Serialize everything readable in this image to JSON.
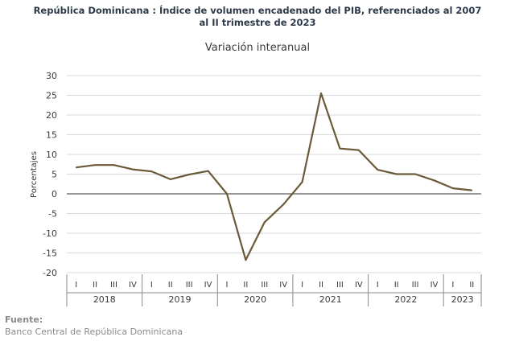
{
  "chart_data": {
    "type": "line",
    "title": "República Dominicana : Índice de volumen encadenado del PIB, referenciados al 2007 al II trimestre de 2023",
    "title_lines": [
      "República Dominicana : Índice de volumen encadenado del PIB, referenciados al 2007",
      "al II trimestre de 2023"
    ],
    "subtitle": "Variación interanual",
    "ylabel": "Porcentajes",
    "xlabel": "",
    "ylim": [
      -20,
      30
    ],
    "yticks": [
      30,
      25,
      20,
      15,
      10,
      5,
      0,
      -5,
      -10,
      -15,
      -20
    ],
    "grid": true,
    "legend": "none",
    "line_color": "#6b5a3a",
    "years": [
      {
        "label": "2018",
        "quarters": [
          "I",
          "II",
          "III",
          "IV"
        ]
      },
      {
        "label": "2019",
        "quarters": [
          "I",
          "II",
          "III",
          "IV"
        ]
      },
      {
        "label": "2020",
        "quarters": [
          "I",
          "II",
          "III",
          "IV"
        ]
      },
      {
        "label": "2021",
        "quarters": [
          "I",
          "II",
          "III",
          "IV"
        ]
      },
      {
        "label": "2022",
        "quarters": [
          "I",
          "II",
          "III",
          "IV"
        ]
      },
      {
        "label": "2023",
        "quarters": [
          "I",
          "II"
        ]
      }
    ],
    "values": [
      6.7,
      7.3,
      7.3,
      6.2,
      5.7,
      3.7,
      4.9,
      5.8,
      0.0,
      -16.8,
      -7.2,
      -2.7,
      3.0,
      25.5,
      11.5,
      11.1,
      6.1,
      5.0,
      5.0,
      3.4,
      1.4,
      0.9
    ]
  },
  "source": {
    "label": "Fuente:",
    "text": "Banco Central de República Dominicana"
  }
}
